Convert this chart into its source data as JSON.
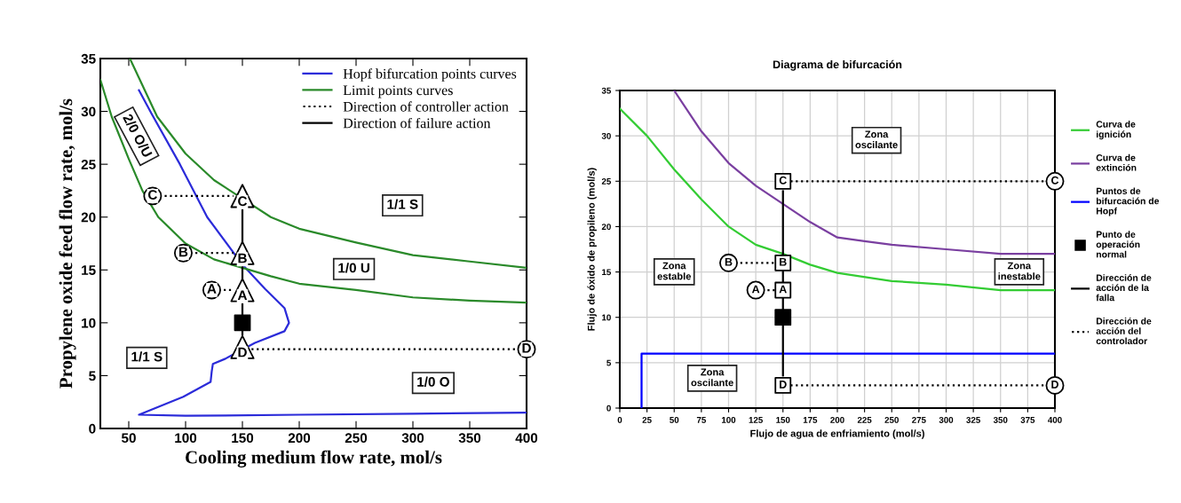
{
  "chart_data": [
    {
      "type": "line",
      "xlabel": "Cooling medium flow rate, mol/s",
      "ylabel": "Propylene oxide feed flow rate, mol/s",
      "xlim": [
        25,
        400
      ],
      "xticks": [
        50,
        100,
        150,
        200,
        250,
        300,
        350,
        400
      ],
      "ylim": [
        0,
        35
      ],
      "yticks": [
        0,
        5,
        10,
        15,
        20,
        25,
        30,
        35
      ],
      "grid": false,
      "legend": "top right",
      "series": [
        {
          "name": "Hopf bifurcation points curves",
          "color": "#2b2bd9",
          "x": [
            59,
            70,
            95,
            119,
            150,
            170,
            187,
            191,
            187,
            161,
            135,
            124,
            123,
            122,
            98,
            59,
            100,
            200,
            300,
            400
          ],
          "values": [
            32,
            29.8,
            25,
            20,
            15.5,
            13.2,
            11.4,
            10,
            9.2,
            8.1,
            6.6,
            6.1,
            5.4,
            4.4,
            3,
            1.3,
            1.2,
            1.3,
            1.4,
            1.5
          ]
        },
        {
          "name": "Limit points curves",
          "color": "#2a8a2a",
          "x": [
            51,
            75,
            100,
            125,
            175,
            200,
            250,
            300,
            350,
            400,
            null,
            25,
            35,
            50,
            62,
            76,
            100,
            125,
            150,
            175,
            200,
            250,
            300,
            350,
            400
          ],
          "values": [
            35,
            29.5,
            26,
            23.5,
            20,
            18.9,
            17.6,
            16.4,
            15.8,
            15.2,
            null,
            33,
            29.5,
            25.5,
            22.5,
            20,
            17.5,
            16,
            15.2,
            14.4,
            13.7,
            13.1,
            12.4,
            12.1,
            11.9
          ]
        },
        {
          "name": "Direction of controller action",
          "color": "#000000",
          "line_style": "dotted",
          "x": [
            77,
            142,
            null,
            104,
            142,
            null,
            129,
            142,
            null,
            158,
            393
          ],
          "values": [
            22,
            22,
            null,
            16.6,
            16.6,
            null,
            13.1,
            13.1,
            null,
            7.5,
            7.5
          ]
        },
        {
          "name": "Direction of failure action",
          "color": "#000000",
          "line_style": "solid",
          "x": [
            150,
            150
          ],
          "values": [
            8.9,
            20.9
          ]
        },
        {
          "type": "scatter",
          "marker": "square",
          "color": "#000000",
          "x": [
            150
          ],
          "values": [
            10
          ]
        },
        {
          "type": "scatter",
          "marker": "triangle",
          "color": "#ffffff",
          "x": [
            150,
            150,
            150,
            150
          ],
          "values": [
            22,
            16.6,
            13.1,
            7.7
          ],
          "value_labels": [
            "C",
            "B",
            "A",
            "D"
          ]
        },
        {
          "type": "scatter",
          "marker": "circle",
          "color": "#ffffff",
          "x": [
            71,
            98,
            123,
            400
          ],
          "values": [
            22,
            16.6,
            13.1,
            7.5
          ],
          "value_labels": [
            "C",
            "B",
            "A",
            "D"
          ]
        }
      ],
      "annotations": [
        "1/1 S",
        "1/0 U",
        "1/0 O",
        "1/1 S",
        "2/0 O/U"
      ]
    },
    {
      "type": "line",
      "title": "Diagrama de bifurcación",
      "xlabel": "Flujo de agua de enfriamiento (mol/s)",
      "ylabel": "Flujo de óxido de propileno (mol/s)",
      "xlim": [
        0,
        400
      ],
      "xticks": [
        0,
        25,
        50,
        75,
        100,
        125,
        150,
        175,
        200,
        225,
        250,
        275,
        300,
        325,
        350,
        375,
        400
      ],
      "ylim": [
        0,
        35
      ],
      "yticks": [
        0,
        5,
        10,
        15,
        20,
        25,
        30,
        35
      ],
      "grid": true,
      "legend": "right",
      "series": [
        {
          "name": "Curva de ignición",
          "color": "#33cc33",
          "x": [
            0,
            25,
            50,
            75,
            100,
            125,
            150,
            175,
            200,
            250,
            300,
            350,
            400
          ],
          "values": [
            33,
            30,
            26.3,
            23,
            20,
            18,
            17,
            15.8,
            14.9,
            14,
            13.6,
            13,
            13
          ]
        },
        {
          "name": "Curva de extinción",
          "color": "#7a3fa0",
          "x": [
            50,
            75,
            100,
            125,
            150,
            175,
            200,
            225,
            250,
            300,
            350,
            400
          ],
          "values": [
            35,
            30.5,
            27,
            24.5,
            22.5,
            20.5,
            18.8,
            18.4,
            18,
            17.5,
            17,
            17
          ]
        },
        {
          "name": "Puntos de bifurcación de Hopf",
          "color": "#0000ff",
          "x": [
            20,
            20,
            400
          ],
          "values": [
            0,
            6,
            6
          ]
        },
        {
          "name": "Punto de operación normal",
          "type": "scatter",
          "marker": "square",
          "color": "#000000",
          "x": [
            150
          ],
          "values": [
            10
          ]
        },
        {
          "name": "Dirección de acción de la falla",
          "color": "#000000",
          "line_style": "solid",
          "x": [
            150,
            150
          ],
          "values": [
            3.6,
            23.9
          ]
        },
        {
          "name": "Dirección de acción del controlador",
          "color": "#000000",
          "line_style": "dotted",
          "x": [
            157,
            392,
            null,
            106,
            143,
            null,
            131,
            143
          ],
          "values": [
            25,
            25,
            null,
            16,
            16,
            null,
            13,
            13
          ]
        },
        {
          "color": "#000000",
          "line_style": "dotted",
          "x": [
            157,
            392
          ],
          "values": [
            2.5,
            2.5
          ]
        },
        {
          "type": "scatter",
          "marker": "square",
          "color": "#ffffff",
          "x": [
            150,
            150,
            150,
            150
          ],
          "values": [
            25,
            16,
            13,
            2.5
          ],
          "value_labels": [
            "C",
            "B",
            "A",
            "D"
          ]
        },
        {
          "type": "scatter",
          "marker": "circle",
          "color": "#ffffff",
          "x": [
            400,
            100,
            125,
            400
          ],
          "values": [
            25,
            16,
            13,
            2.5
          ],
          "value_labels": [
            "C",
            "B",
            "A",
            "D"
          ]
        }
      ],
      "annotations": [
        "Zona oscilante",
        "Zona estable",
        "Zona inestable",
        "Zona oscilante"
      ]
    }
  ]
}
